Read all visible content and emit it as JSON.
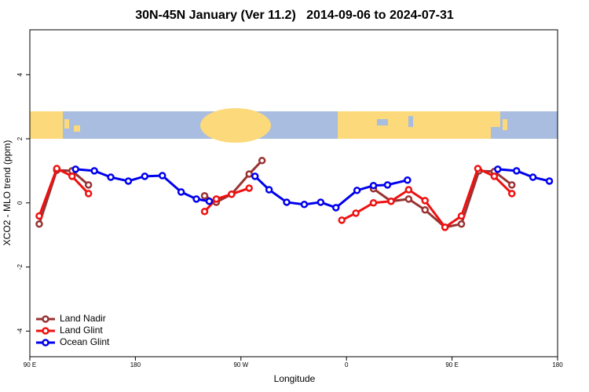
{
  "chart_data": {
    "type": "line",
    "title": "30N-45N January (Ver 11.2)   2014-09-06 to 2024-07-31",
    "x_label": "Longitude",
    "y_label": "XCO2 - MLO trend (ppm)",
    "xlim": [
      90,
      540
    ],
    "ylim": [
      -4.8,
      5.4
    ],
    "xticks": [
      {
        "value": 90,
        "label": "90 E"
      },
      180,
      {
        "value": 270,
        "label": "90 W"
      },
      {
        "value": 360,
        "label": "0"
      },
      {
        "value": 450,
        "label": "90 E"
      },
      {
        "value": 540,
        "label": "180"
      }
    ],
    "yticks": [
      -4,
      -2,
      0,
      2,
      4
    ],
    "legend": "bottom-left",
    "series": [
      {
        "name": "Land Nadir",
        "color": "#993333",
        "x": [
          98,
          113,
          126,
          140,
          null,
          239,
          249,
          262,
          277,
          288,
          null,
          383,
          398,
          413,
          427,
          444,
          458,
          473,
          486,
          501
        ],
        "values": [
          -0.66,
          1.02,
          1.0,
          0.56,
          null,
          0.22,
          0.02,
          0.27,
          0.9,
          1.32,
          null,
          0.44,
          0.05,
          0.12,
          -0.22,
          -0.76,
          -0.66,
          1.0,
          0.98,
          0.56
        ]
      },
      {
        "name": "Land Glint",
        "color": "#ee1111",
        "x": [
          98,
          113,
          126,
          140,
          null,
          239,
          249,
          262,
          277,
          null,
          356,
          368,
          383,
          398,
          413,
          427,
          444,
          458,
          472,
          486,
          501
        ],
        "values": [
          -0.41,
          1.07,
          0.83,
          0.29,
          null,
          -0.27,
          0.12,
          0.27,
          0.46,
          null,
          -0.54,
          -0.32,
          0,
          0.05,
          0.41,
          0.07,
          -0.76,
          -0.41,
          1.07,
          0.83,
          0.29
        ]
      },
      {
        "name": "Ocean Glint",
        "color": "#0000ee",
        "x": [
          129,
          145,
          159,
          174,
          188,
          203,
          219,
          232,
          243,
          null,
          282,
          294,
          309,
          324,
          338,
          351,
          369,
          383,
          395,
          412,
          null,
          489,
          505,
          519,
          533
        ],
        "values": [
          1.05,
          1.0,
          0.8,
          0.68,
          0.83,
          0.85,
          0.34,
          0.12,
          0.05,
          null,
          0.83,
          0.41,
          0.02,
          -0.05,
          0.02,
          -0.15,
          0.39,
          0.54,
          0.56,
          0.71,
          null,
          1.05,
          1.0,
          0.8,
          0.68
        ]
      }
    ]
  }
}
